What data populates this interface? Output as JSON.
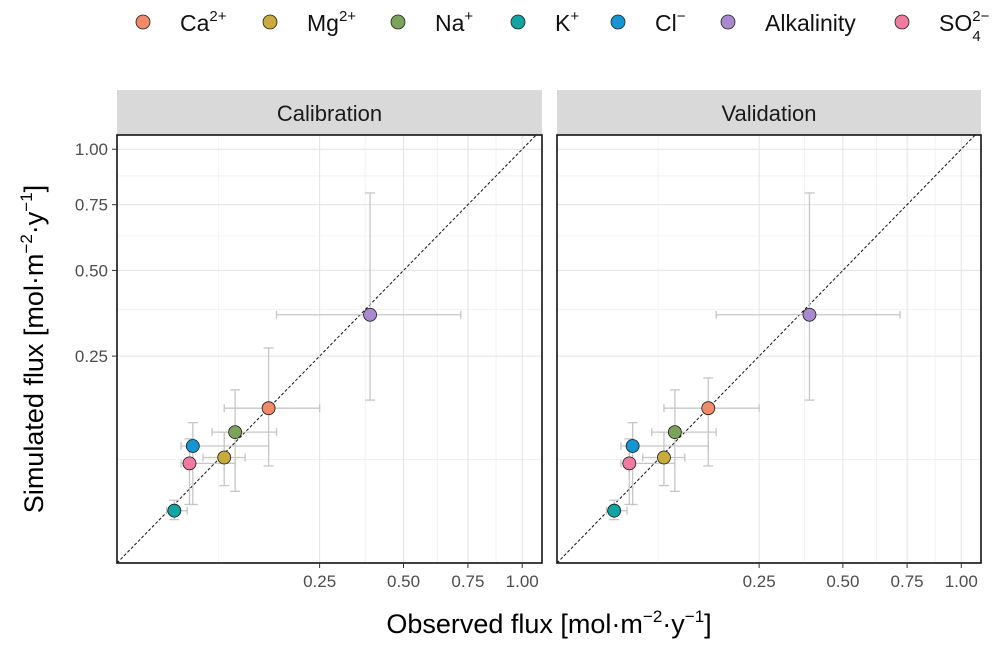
{
  "chart_data": {
    "type": "scatter",
    "facets": [
      {
        "title": "Calibration",
        "points": [
          {
            "series": "Ca",
            "x": 0.14,
            "y": 0.14,
            "xerr": [
              0.07,
              0.25
            ],
            "yerr": [
              0.055,
              0.27
            ]
          },
          {
            "series": "Mg",
            "x": 0.07,
            "y": 0.065,
            "xerr": [
              0.045,
              0.1
            ],
            "yerr": [
              0.035,
              0.1
            ]
          },
          {
            "series": "Na",
            "x": 0.085,
            "y": 0.1,
            "xerr": [
              0.055,
              0.155
            ],
            "yerr": [
              0.03,
              0.175
            ]
          },
          {
            "series": "K",
            "x": 0.02,
            "y": 0.016,
            "xerr": [
              0.015,
              0.03
            ],
            "yerr": [
              0.011,
              0.023
            ]
          },
          {
            "series": "Cl",
            "x": 0.035,
            "y": 0.08,
            "xerr": [
              0.025,
              0.14
            ],
            "yerr": [
              0.02,
              0.115
            ]
          },
          {
            "series": "Alkalinity",
            "x": 0.39,
            "y": 0.36,
            "xerr": [
              0.155,
              0.72
            ],
            "yerr": [
              0.155,
              0.8
            ]
          },
          {
            "series": "SO4",
            "x": 0.032,
            "y": 0.058,
            "xerr": [
              0.025,
              0.085
            ],
            "yerr": [
              0.02,
              0.09
            ]
          }
        ]
      },
      {
        "title": "Validation",
        "points": [
          {
            "series": "Ca",
            "x": 0.14,
            "y": 0.14,
            "xerr": [
              0.07,
              0.25
            ],
            "yerr": [
              0.055,
              0.2
            ]
          },
          {
            "series": "Mg",
            "x": 0.07,
            "y": 0.065,
            "xerr": [
              0.045,
              0.1
            ],
            "yerr": [
              0.035,
              0.1
            ]
          },
          {
            "series": "Na",
            "x": 0.085,
            "y": 0.1,
            "xerr": [
              0.055,
              0.155
            ],
            "yerr": [
              0.03,
              0.175
            ]
          },
          {
            "series": "K",
            "x": 0.02,
            "y": 0.016,
            "xerr": [
              0.015,
              0.03
            ],
            "yerr": [
              0.011,
              0.023
            ]
          },
          {
            "series": "Cl",
            "x": 0.035,
            "y": 0.08,
            "xerr": [
              0.025,
              0.14
            ],
            "yerr": [
              0.02,
              0.115
            ]
          },
          {
            "series": "Alkalinity",
            "x": 0.39,
            "y": 0.36,
            "xerr": [
              0.155,
              0.72
            ],
            "yerr": [
              0.155,
              0.8
            ]
          },
          {
            "series": "SO4",
            "x": 0.032,
            "y": 0.058,
            "xerr": [
              0.025,
              0.085
            ],
            "yerr": [
              0.02,
              0.09
            ]
          }
        ]
      }
    ],
    "legend": [
      {
        "key": "Ca",
        "base": "Ca",
        "sup": "2+",
        "sub": "",
        "color": "#f08a68"
      },
      {
        "key": "Mg",
        "base": "Mg",
        "sup": "2+",
        "sub": "",
        "color": "#c9aa3c"
      },
      {
        "key": "Na",
        "base": "Na",
        "sup": "+",
        "sub": "",
        "color": "#7ca35a"
      },
      {
        "key": "K",
        "base": "K",
        "sup": "+",
        "sub": "",
        "color": "#12a3a3"
      },
      {
        "key": "Cl",
        "base": "Cl",
        "sup": "−",
        "sub": "",
        "color": "#1596d2"
      },
      {
        "key": "Alkalinity",
        "base": "Alkalinity",
        "sup": "",
        "sub": "",
        "color": "#a98ad0"
      },
      {
        "key": "SO4",
        "base": "SO",
        "sup": "2−",
        "sub": "4",
        "color": "#f07ba0"
      }
    ],
    "legend_position": "top",
    "xlabel": {
      "base": "Observed flux [mol·m",
      "sup1": "−2",
      "mid": "·y",
      "sup2": "−1",
      "end": "]"
    },
    "ylabel": {
      "base": "Simulated flux [mol·m",
      "sup1": "−2",
      "mid": "·y",
      "sup2": "−1",
      "end": "]"
    },
    "x_ticks": [
      0.25,
      0.5,
      0.75,
      1.0
    ],
    "x_tick_labels": [
      "0.25",
      "0.50",
      "0.75",
      "1.00"
    ],
    "y_ticks": [
      0.25,
      0.5,
      0.75,
      1.0
    ],
    "y_tick_labels": [
      "0.25",
      "0.50",
      "0.75",
      "1.00"
    ],
    "scale": "sqrt",
    "xlim": [
      0,
      1.1
    ],
    "ylim": [
      0,
      1.07
    ],
    "reference_line": "y = x",
    "grid": true,
    "colors": {
      "strip_bg": "#d9d9d9",
      "grid": "#e3e3e3",
      "errorbar": "#c6c6c6"
    }
  }
}
